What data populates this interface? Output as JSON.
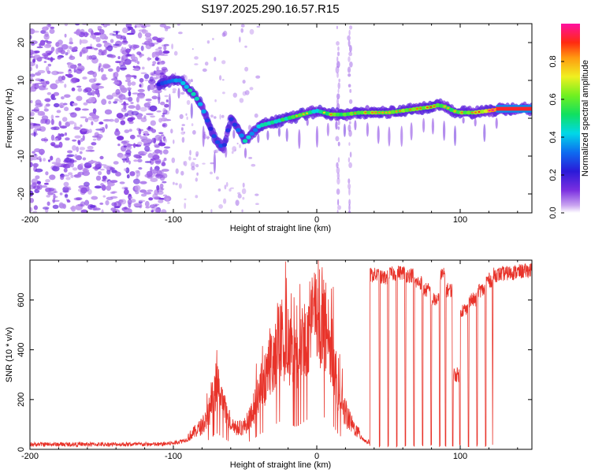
{
  "title": "S197.2025.290.16.57.R15",
  "colors": {
    "snr_line": "#e8332a",
    "frame": "#000000",
    "background": "#ffffff",
    "track_core": "#ff2020",
    "scatter": "#8a3ed8"
  },
  "chart_data": [
    {
      "type": "heatmap",
      "title": "S197.2025.290.16.57.R15",
      "xlabel": "Height of straight line (km)",
      "ylabel": "Frequency (Hz)",
      "xlim": [
        -200,
        150
      ],
      "ylim": [
        -25,
        25
      ],
      "xticks": [
        -200,
        -100,
        0,
        100
      ],
      "xtick_labels": [
        "-200",
        "-100",
        "0",
        "100"
      ],
      "yticks": [
        -20,
        -10,
        0,
        10,
        20
      ],
      "ytick_labels": [
        "-20",
        "-10",
        "0",
        "10",
        "20"
      ],
      "colorbar": {
        "label": "Normalized spectral amplitude",
        "range": [
          0,
          1
        ],
        "ticks": [
          0,
          0.2,
          0.4,
          0.6,
          0.8
        ],
        "tick_labels": [
          "0.0",
          "0.2",
          "0.4",
          "0.6",
          "0.8"
        ],
        "colormap": "rainbow (violet → blue → cyan → green → yellow → red → magenta)"
      },
      "ridge": {
        "x": [
          -110,
          -100,
          -95,
          -90,
          -85,
          -80,
          -75,
          -70,
          -65,
          -60,
          -55,
          -50,
          -45,
          -40,
          -35,
          -30,
          -25,
          -20,
          -15,
          -10,
          -5,
          0,
          5,
          10,
          20,
          30,
          40,
          50,
          60,
          70,
          80,
          85,
          90,
          95,
          100,
          105,
          110,
          120,
          130,
          140,
          150
        ],
        "y": [
          9,
          10,
          10,
          8,
          6,
          3,
          -2,
          -6,
          -8,
          0,
          -3,
          -6,
          -4,
          -2,
          -1.5,
          -1,
          -0.5,
          0,
          0.5,
          1,
          1.5,
          2,
          1.5,
          1,
          1,
          1.5,
          1.5,
          1.5,
          2,
          2.5,
          3,
          3.5,
          3,
          2,
          1.5,
          1.5,
          1.5,
          2,
          2.5,
          2.5,
          2.5
        ],
        "amplitude": [
          0.25,
          0.35,
          0.4,
          0.45,
          0.5,
          0.35,
          0.25,
          0.3,
          0.25,
          0.25,
          0.3,
          0.45,
          0.35,
          0.4,
          0.45,
          0.45,
          0.5,
          0.5,
          0.55,
          0.55,
          0.5,
          0.45,
          0.5,
          0.6,
          0.55,
          0.6,
          0.6,
          0.55,
          0.6,
          0.6,
          0.65,
          0.55,
          0.55,
          0.55,
          0.6,
          0.6,
          0.6,
          0.75,
          0.9,
          0.95,
          0.95
        ]
      },
      "noise_region_x": [
        -200,
        -110
      ],
      "vertical_streak_x": [
        15,
        23
      ]
    },
    {
      "type": "line",
      "xlabel": "Height of straight line (km)",
      "ylabel": "SNR (10 * v/v)",
      "xlim": [
        -200,
        150
      ],
      "ylim": [
        0,
        760
      ],
      "xticks": [
        -200,
        -100,
        0,
        100
      ],
      "xtick_labels": [
        "-200",
        "-100",
        "0",
        "100"
      ],
      "yticks": [
        0,
        200,
        400,
        600
      ],
      "ytick_labels": [
        "0",
        "200",
        "400",
        "600"
      ],
      "series": [
        {
          "name": "SNR",
          "envelope": {
            "x": [
              -200,
              -150,
              -110,
              -100,
              -90,
              -80,
              -75,
              -70,
              -65,
              -60,
              -55,
              -50,
              -45,
              -40,
              -35,
              -30,
              -25,
              -20,
              -15,
              -10,
              -5,
              0,
              5,
              10,
              15,
              20,
              25,
              30,
              35
            ],
            "y": [
              20,
              20,
              20,
              25,
              40,
              80,
              130,
              220,
              150,
              90,
              70,
              80,
              120,
              200,
              250,
              320,
              380,
              360,
              300,
              350,
              420,
              460,
              430,
              360,
              200,
              120,
              80,
              50,
              30
            ]
          },
          "dropouts_start_x": 37,
          "dropouts_end_x": 123,
          "plateau_segments": [
            [
              37,
              44,
              700
            ],
            [
              44,
              50,
              690
            ],
            [
              50,
              56,
              705
            ],
            [
              56,
              62,
              710
            ],
            [
              62,
              68,
              700
            ],
            [
              68,
              74,
              670
            ],
            [
              74,
              80,
              640
            ],
            [
              80,
              86,
              600
            ],
            [
              86,
              90,
              700
            ],
            [
              90,
              95,
              640
            ],
            [
              95,
              100,
              300
            ],
            [
              100,
              106,
              560
            ],
            [
              106,
              112,
              600
            ],
            [
              112,
              118,
              640
            ],
            [
              118,
              123,
              680
            ]
          ],
          "tail": {
            "x": [
              123,
              150
            ],
            "y": [
              700,
              720
            ]
          }
        }
      ]
    }
  ]
}
